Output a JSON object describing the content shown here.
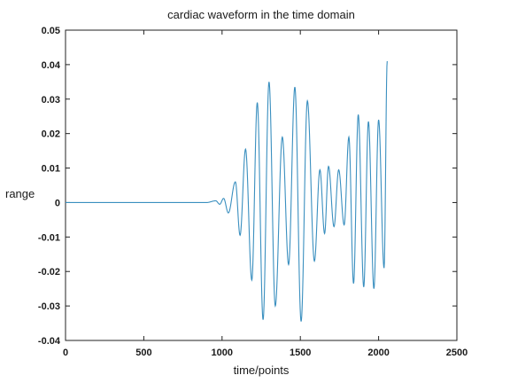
{
  "chart_data": {
    "type": "line",
    "title": "cardiac waveform in the time domain",
    "xlabel": "time/points",
    "ylabel": "range",
    "xlim": [
      0,
      2500
    ],
    "ylim": [
      -0.04,
      0.05
    ],
    "x_ticks": [
      0,
      500,
      1000,
      1500,
      2000,
      2500
    ],
    "x_tick_labels": [
      "0",
      "500",
      "1000",
      "1500",
      "2000",
      "2500"
    ],
    "y_ticks": [
      -0.04,
      -0.03,
      -0.02,
      -0.01,
      0,
      0.01,
      0.02,
      0.03,
      0.04,
      0.05
    ],
    "y_tick_labels": [
      "-0.04",
      "-0.03",
      "-0.02",
      "-0.01",
      "0",
      "0.01",
      "0.02",
      "0.03",
      "0.04",
      "0.05"
    ],
    "grid": false,
    "line_color": "#3a8fbf",
    "series": [
      {
        "extrema": [
          [
            0,
            0
          ],
          [
            900,
            0
          ],
          [
            960,
            0.0005
          ],
          [
            985,
            -0.0005
          ],
          [
            1010,
            0.0012
          ],
          [
            1040,
            -0.003
          ],
          [
            1085,
            0.006
          ],
          [
            1115,
            -0.0095
          ],
          [
            1150,
            0.0155
          ],
          [
            1190,
            -0.0225
          ],
          [
            1225,
            0.029
          ],
          [
            1262,
            -0.034
          ],
          [
            1300,
            0.035
          ],
          [
            1340,
            -0.03
          ],
          [
            1385,
            0.019
          ],
          [
            1425,
            -0.018
          ],
          [
            1465,
            0.0335
          ],
          [
            1505,
            -0.0345
          ],
          [
            1545,
            0.0295
          ],
          [
            1590,
            -0.017
          ],
          [
            1625,
            0.0095
          ],
          [
            1655,
            -0.009
          ],
          [
            1680,
            0.0105
          ],
          [
            1715,
            -0.007
          ],
          [
            1745,
            0.0095
          ],
          [
            1780,
            -0.0065
          ],
          [
            1810,
            0.019
          ],
          [
            1840,
            -0.0235
          ],
          [
            1870,
            0.0255
          ],
          [
            1905,
            -0.0245
          ],
          [
            1935,
            0.0235
          ],
          [
            1970,
            -0.025
          ],
          [
            2000,
            0.024
          ],
          [
            2035,
            -0.019
          ],
          [
            2055,
            0.041
          ]
        ]
      }
    ]
  }
}
